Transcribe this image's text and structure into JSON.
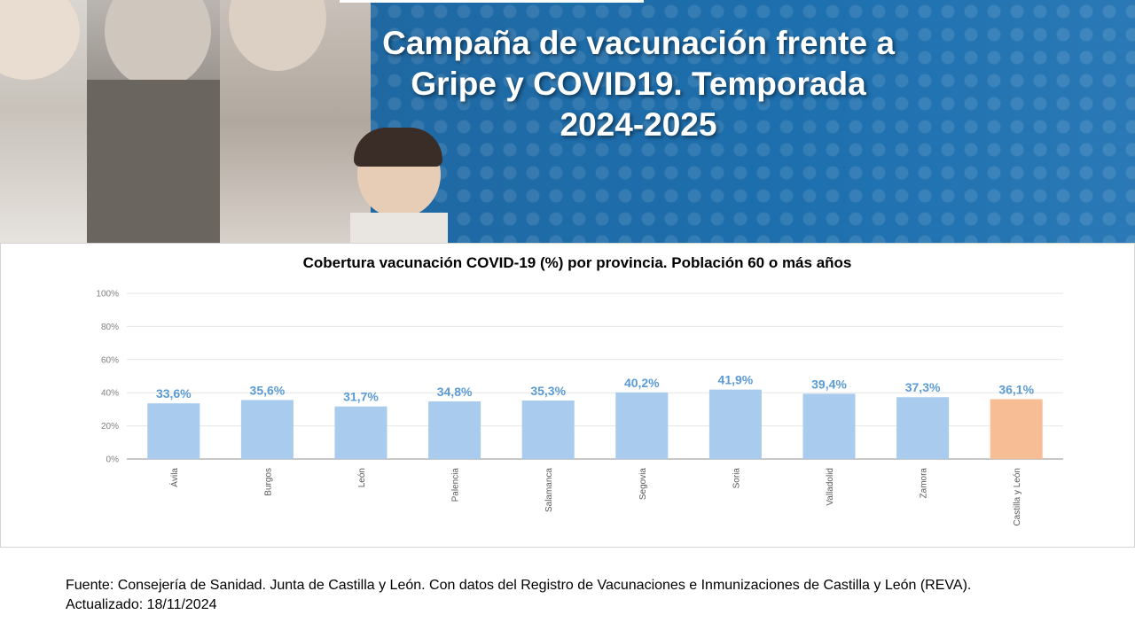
{
  "banner": {
    "title_lines": [
      "Campaña de vacunación frente a",
      "Gripe y COVID19. Temporada",
      "2024-2025"
    ]
  },
  "chart_data": {
    "type": "bar",
    "title": "Cobertura vacunación COVID-19  (%) por provincia. Población 60 o más años",
    "categories": [
      "Ávila",
      "Burgos",
      "León",
      "Palencia",
      "Salamanca",
      "Segovia",
      "Soria",
      "Valladolid",
      "Zamora",
      "Castilla  y León"
    ],
    "values": [
      33.6,
      35.6,
      31.7,
      34.8,
      35.3,
      40.2,
      41.9,
      39.4,
      37.3,
      36.1
    ],
    "data_labels": [
      "33,6%",
      "35,6%",
      "31,7%",
      "34,8%",
      "35,3%",
      "40,2%",
      "41,9%",
      "39,4%",
      "37,3%",
      "36,1%"
    ],
    "ylim": [
      0,
      100
    ],
    "yticks": [
      0,
      20,
      40,
      60,
      80,
      100
    ],
    "ytick_labels": [
      "0%",
      "20%",
      "40%",
      "60%",
      "80%",
      "100%"
    ],
    "xlabel": "",
    "ylabel": "",
    "grid": true,
    "colors": {
      "bar": "#a9cbee",
      "highlight_bar": "#f7bd94",
      "label": "#5b9bd5",
      "grid": "#e6e6e6",
      "axis": "#a6a6a6"
    },
    "highlight_index": 9
  },
  "footer": {
    "source": "Fuente: Consejería de Sanidad. Junta de Castilla y León. Con datos del Registro de Vacunaciones e Inmunizaciones  de Castilla y León (REVA).",
    "updated": "Actualizado: 18/11/2024"
  }
}
